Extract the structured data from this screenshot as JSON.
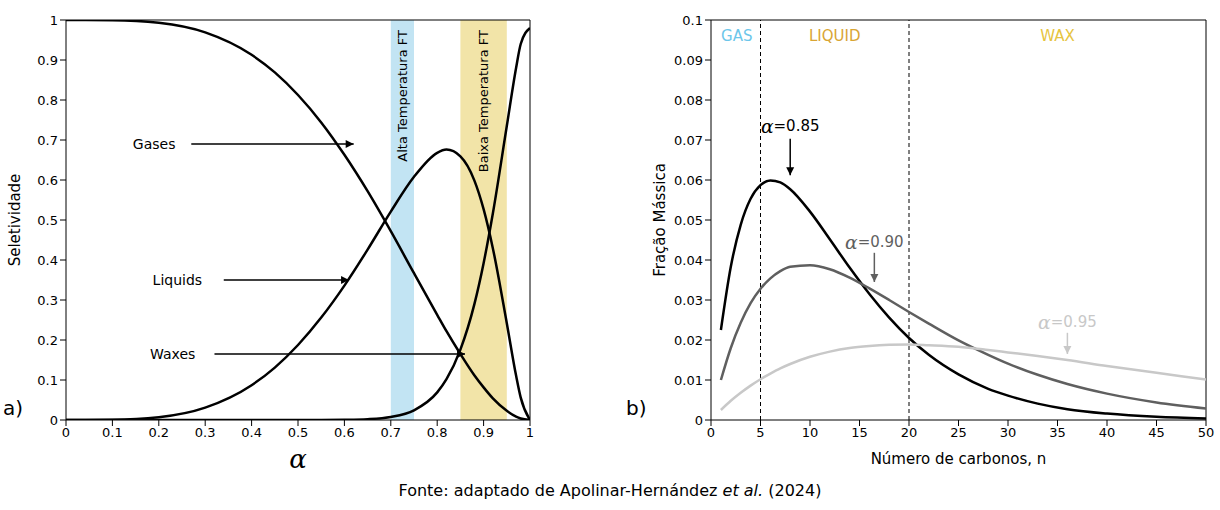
{
  "chart_data": [
    {
      "type": "line",
      "panel_label": "a)",
      "x_label": "α",
      "y_label": "Seletividade",
      "x": [
        0,
        0.1,
        0.2,
        0.3,
        0.4,
        0.45,
        0.5,
        0.55,
        0.6,
        0.65,
        0.7,
        0.75,
        0.8,
        0.82,
        0.85,
        0.88,
        0.9,
        0.92,
        0.95,
        0.97,
        0.98,
        1
      ],
      "series": [
        {
          "name": "Gases",
          "color": "#000000",
          "values": [
            1,
            0.9995,
            0.993,
            0.969,
            0.913,
            0.869,
            0.8125,
            0.744,
            0.663,
            0.572,
            0.472,
            0.367,
            0.263,
            0.222,
            0.165,
            0.112,
            0.0815,
            0.054,
            0.023,
            0.0085,
            0.0038,
            0
          ]
        },
        {
          "name": "Liquids",
          "color": "#000000",
          "values": [
            0,
            0.0005,
            0.007,
            0.031,
            0.087,
            0.131,
            0.1875,
            0.256,
            0.336,
            0.426,
            0.521,
            0.608,
            0.668,
            0.676,
            0.659,
            0.599,
            0.527,
            0.429,
            0.242,
            0.111,
            0.056,
            0
          ]
        },
        {
          "name": "Waxes",
          "color": "#000000",
          "values": [
            0,
            0,
            0,
            0,
            0,
            0,
            0,
            0,
            0.0005,
            0.0021,
            0.0076,
            0.0243,
            0.069,
            0.102,
            0.176,
            0.289,
            0.392,
            0.517,
            0.735,
            0.88,
            0.94,
            0.98
          ]
        }
      ],
      "xlim": [
        0,
        1
      ],
      "ylim": [
        0,
        1
      ],
      "xticks": [
        0,
        0.1,
        0.2,
        0.3,
        0.4,
        0.5,
        0.6,
        0.7,
        0.8,
        0.9,
        1
      ],
      "yticks": [
        0,
        0.1,
        0.2,
        0.3,
        0.4,
        0.5,
        0.6,
        0.7,
        0.8,
        0.9,
        1
      ],
      "grid": false,
      "bands": [
        {
          "x": [
            0.7,
            0.75
          ],
          "label": "Alta Temperatura FT",
          "color": "#c2e4f3"
        },
        {
          "x": [
            0.85,
            0.95
          ],
          "label": "Baixa Temperatura FT",
          "color": "#f2e4a8"
        }
      ],
      "vlines": [],
      "annotations": [
        {
          "text": "Gases",
          "x": 0.19,
          "y": 0.69,
          "color": "#000000",
          "arrow_from": [
            0.27,
            0.69
          ],
          "arrow_to": [
            0.62,
            0.69
          ]
        },
        {
          "text": "Liquids",
          "x": 0.24,
          "y": 0.35,
          "color": "#000000",
          "arrow_from": [
            0.34,
            0.35
          ],
          "arrow_to": [
            0.61,
            0.35
          ]
        },
        {
          "text": "Waxes",
          "x": 0.23,
          "y": 0.165,
          "color": "#000000",
          "arrow_from": [
            0.32,
            0.165
          ],
          "arrow_to": [
            0.86,
            0.165
          ]
        }
      ]
    },
    {
      "type": "line",
      "panel_label": "b)",
      "x_label": "Número de carbonos, n",
      "y_label": "Fração Mássica",
      "x": [
        1,
        2,
        3,
        4,
        5,
        6,
        7,
        8,
        10,
        12,
        14,
        16,
        18,
        20,
        22,
        25,
        28,
        30,
        33,
        36,
        40,
        45,
        50
      ],
      "series": [
        {
          "name": "α=0.85",
          "color": "#000000",
          "values": [
            0.0225,
            0.0383,
            0.0488,
            0.0553,
            0.0587,
            0.0599,
            0.0594,
            0.0577,
            0.0521,
            0.0452,
            0.0381,
            0.0315,
            0.0256,
            0.0205,
            0.0163,
            0.0114,
            0.0078,
            0.0061,
            0.0041,
            0.0027,
            0.0016,
            0.0008,
            0.0004
          ]
        },
        {
          "name": "α=0.90",
          "color": "#5f5f5f",
          "values": [
            0.01,
            0.018,
            0.0243,
            0.0292,
            0.0328,
            0.0354,
            0.0372,
            0.0383,
            0.0387,
            0.0377,
            0.0356,
            0.0329,
            0.03,
            0.027,
            0.0241,
            0.0199,
            0.0163,
            0.0141,
            0.0113,
            0.009,
            0.0066,
            0.0044,
            0.0029
          ]
        },
        {
          "name": "α=0.95",
          "color": "#c8c8c8",
          "values": [
            0.0025,
            0.0048,
            0.0068,
            0.0086,
            0.0102,
            0.0116,
            0.0129,
            0.014,
            0.0158,
            0.0171,
            0.018,
            0.0185,
            0.0188,
            0.0189,
            0.0187,
            0.0183,
            0.0175,
            0.0169,
            0.016,
            0.015,
            0.0135,
            0.0118,
            0.0101
          ]
        }
      ],
      "xlim": [
        0,
        50
      ],
      "ylim": [
        0,
        0.1
      ],
      "xticks": [
        0,
        5,
        10,
        15,
        20,
        25,
        30,
        35,
        40,
        45,
        50
      ],
      "yticks": [
        0,
        0.01,
        0.02,
        0.03,
        0.04,
        0.05,
        0.06,
        0.07,
        0.08,
        0.09,
        0.1
      ],
      "grid": false,
      "bands": [],
      "vlines": [
        {
          "x": 5,
          "line_style": "dashed"
        },
        {
          "x": 20,
          "line_style": "dashed"
        }
      ],
      "annotations": [
        {
          "text": "GAS",
          "x": 2.6,
          "y": 0.096,
          "color": "#6cc6ea"
        },
        {
          "text": "LIQUID",
          "x": 12.5,
          "y": 0.096,
          "color": "#d9a534"
        },
        {
          "text": "WAX",
          "x": 35,
          "y": 0.096,
          "color": "#e6c440"
        },
        {
          "text": "α=0.85",
          "x": 8,
          "y": 0.0735,
          "color": "#000000",
          "arrow_from": [
            8,
            0.0703
          ],
          "arrow_to": [
            8,
            0.0612
          ]
        },
        {
          "text": "α=0.90",
          "x": 16.5,
          "y": 0.0445,
          "color": "#5f5f5f",
          "arrow_from": [
            16.5,
            0.0418
          ],
          "arrow_to": [
            16.5,
            0.0345
          ]
        },
        {
          "text": "α=0.95",
          "x": 36,
          "y": 0.0245,
          "color": "#c8c8c8",
          "arrow_from": [
            36,
            0.0218
          ],
          "arrow_to": [
            36,
            0.0165
          ]
        }
      ]
    }
  ],
  "caption": [
    {
      "text": "Fonte: adaptado de Apolinar-Hernández "
    },
    {
      "text": "et al.",
      "italic": true
    },
    {
      "text": " (2024)"
    }
  ]
}
